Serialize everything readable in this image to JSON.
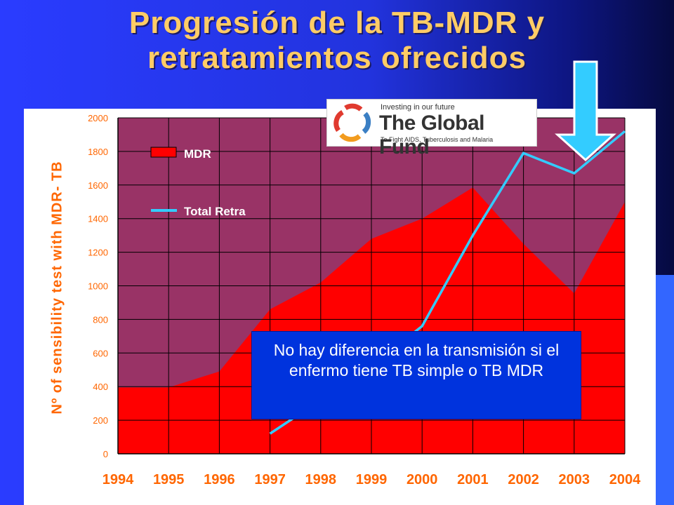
{
  "slide": {
    "title_line1": "Progresión de la TB-MDR y",
    "title_line2": "retratamientos ofrecidos",
    "callout": "No hay diferencia en la transmisión si el enfermo tiene TB simple o TB MDR"
  },
  "logo": {
    "tagline": "Investing in our future",
    "brand": "The Global Fund",
    "subtitle": "To Fight AIDS, Tuberculosis and Malaria"
  },
  "colors": {
    "mdr_fill": "#ff0000",
    "total_line": "#33ccff",
    "plot_bg": "#993366",
    "axis_text": "#ff6600",
    "title_text": "#ffcc66"
  },
  "chart_data": {
    "type": "area",
    "title": "",
    "xlabel": "",
    "ylabel": "Nº of sensibility test with MDR- TB",
    "categories": [
      "1994",
      "1995",
      "1996",
      "1997",
      "1998",
      "1999",
      "2000",
      "2001",
      "2002",
      "2003",
      "2004"
    ],
    "ylim": [
      0,
      2000
    ],
    "yticks": [
      0,
      200,
      400,
      600,
      800,
      1000,
      1200,
      1400,
      1600,
      1800,
      2000
    ],
    "grid": true,
    "legend_position": "top-left",
    "series": [
      {
        "name": "MDR",
        "type": "area",
        "values": [
          395,
          395,
          490,
          860,
          1020,
          1280,
          1400,
          1585,
          1250,
          955,
          1500
        ]
      },
      {
        "name": "Total Retra",
        "type": "line",
        "values": [
          null,
          null,
          null,
          120,
          320,
          520,
          760,
          1300,
          1790,
          1670,
          1920
        ]
      }
    ]
  }
}
